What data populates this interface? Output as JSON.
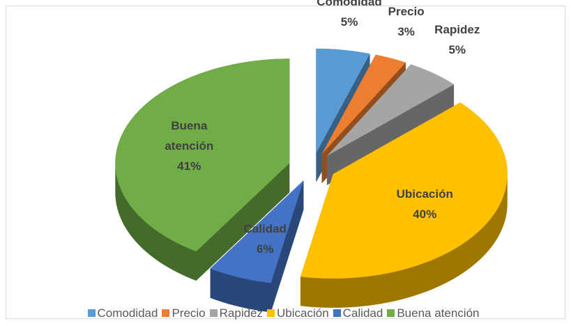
{
  "chart_data": {
    "type": "pie3d",
    "categories": [
      "Comodidad",
      "Precio",
      "Rapidez",
      "Ubicación",
      "Calidad",
      "Buena atención"
    ],
    "values": [
      5,
      3,
      5,
      40,
      6,
      41
    ],
    "value_labels": [
      "5%",
      "3%",
      "5%",
      "40%",
      "6%",
      "41%"
    ],
    "colors": [
      "#5b9bd5",
      "#ed7d31",
      "#a5a5a5",
      "#ffc000",
      "#4472c4",
      "#70ad47"
    ],
    "legend": "bottom"
  }
}
